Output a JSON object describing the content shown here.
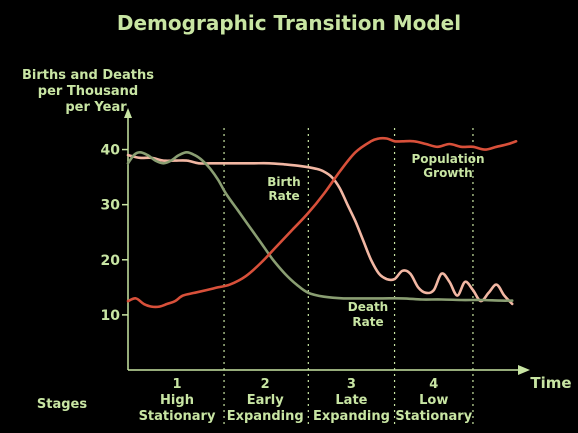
{
  "chart_data": {
    "type": "line",
    "title": "Demographic Transition Model",
    "ylabel_lines": [
      "Births and Deaths",
      "per Thousand",
      "per Year"
    ],
    "xlabel": "Time",
    "stages_label": "Stages",
    "yticks": [
      10,
      20,
      30,
      40
    ],
    "ylim": [
      0,
      45
    ],
    "x_range": [
      0,
      100
    ],
    "stage_boundaries": [
      24.5,
      46,
      68,
      88
    ],
    "stages": [
      {
        "number": "1",
        "name_lines": [
          "High",
          "Stationary"
        ],
        "x_center": 12.5
      },
      {
        "number": "2",
        "name_lines": [
          "Early",
          "Expanding"
        ],
        "x_center": 35
      },
      {
        "number": "3",
        "name_lines": [
          "Late",
          "Expanding"
        ],
        "x_center": 57
      },
      {
        "number": "4",
        "name_lines": [
          "Low",
          "Stationary"
        ],
        "x_center": 78
      }
    ],
    "annotations": {
      "birth_rate": [
        "Birth",
        "Rate"
      ],
      "death_rate": [
        "Death",
        "Rate"
      ],
      "population_growth": [
        "Population",
        "Growth"
      ]
    },
    "series": [
      {
        "key": "birth",
        "color": "#f2b7a3",
        "x": [
          0,
          3,
          6,
          9,
          12,
          15,
          18,
          21,
          24,
          28,
          32,
          36,
          40,
          44,
          48,
          50,
          52,
          54,
          56,
          58,
          60,
          62,
          64,
          66,
          68,
          70,
          72,
          74,
          76,
          78,
          80,
          82,
          84,
          86,
          88,
          90,
          92,
          94,
          96,
          98
        ],
        "values": [
          39,
          38.5,
          38.5,
          38,
          38,
          38,
          37.5,
          37.5,
          37.5,
          37.5,
          37.5,
          37.5,
          37.3,
          37,
          36.5,
          36,
          35,
          33,
          30,
          27,
          23.5,
          20,
          17.5,
          16.5,
          16.5,
          18,
          17.5,
          15,
          14,
          14.5,
          17.5,
          16,
          13.5,
          16,
          14.5,
          12.5,
          14,
          15.5,
          13.5,
          12
        ]
      },
      {
        "key": "death",
        "color": "#8a9e72",
        "x": [
          0,
          1.5,
          3,
          5,
          7,
          9,
          11,
          13,
          15,
          17,
          19,
          21,
          23,
          25,
          28,
          31,
          34,
          37,
          40,
          43,
          46,
          50,
          55,
          60,
          65,
          70,
          75,
          80,
          85,
          90,
          95,
          98
        ],
        "values": [
          37.5,
          39,
          39.5,
          39,
          38,
          37.5,
          38,
          39,
          39.5,
          39,
          38,
          36.5,
          34.5,
          32,
          29,
          26,
          23,
          20,
          17.5,
          15.5,
          14,
          13.3,
          13,
          13,
          13,
          13,
          12.8,
          12.8,
          12.7,
          12.7,
          12.6,
          12.6
        ]
      },
      {
        "key": "population",
        "color": "#d8503a",
        "x": [
          0,
          2,
          4,
          6,
          8,
          10,
          12,
          14,
          17,
          20,
          23,
          26,
          30,
          34,
          38,
          42,
          46,
          50,
          54,
          58,
          62,
          64,
          66,
          68,
          70,
          73,
          76,
          79,
          82,
          85,
          88,
          91,
          94,
          97,
          99
        ],
        "values": [
          12.5,
          13,
          12,
          11.5,
          11.5,
          12,
          12.5,
          13.5,
          14,
          14.5,
          15,
          15.5,
          17,
          19.5,
          22.5,
          25.5,
          28.5,
          32,
          36,
          39.5,
          41.5,
          42,
          42,
          41.5,
          41.5,
          41.5,
          41,
          40.5,
          41,
          40.5,
          40.5,
          40,
          40.5,
          41,
          41.5
        ]
      }
    ]
  }
}
